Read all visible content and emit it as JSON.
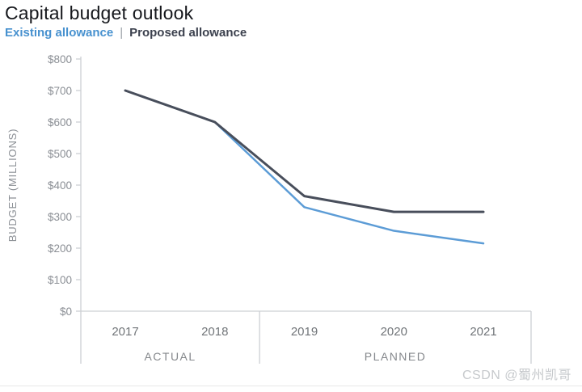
{
  "header": {
    "title": "Capital budget outlook",
    "legend_separator": "|",
    "legend": [
      {
        "label": "Existing allowance",
        "color": "#4791cf"
      },
      {
        "label": "Proposed allowance",
        "color": "#3c414e"
      }
    ]
  },
  "chart_data": {
    "type": "line",
    "title": "Capital budget outlook",
    "xlabel": "",
    "ylabel": "BUDGET (MILLIONS)",
    "x": [
      "2017",
      "2018",
      "2019",
      "2020",
      "2021"
    ],
    "series": [
      {
        "name": "Existing allowance",
        "color": "#5c9cd6",
        "values": [
          700,
          600,
          330,
          255,
          215
        ]
      },
      {
        "name": "Proposed allowance",
        "color": "#484e5b",
        "values": [
          700,
          600,
          365,
          315,
          315
        ]
      }
    ],
    "ylim": [
      0,
      800
    ],
    "ytick_prefix": "$",
    "yticks": [
      {
        "v": 800,
        "label": "$800"
      },
      {
        "v": 700,
        "label": "$700"
      },
      {
        "v": 600,
        "label": "$600"
      },
      {
        "v": 500,
        "label": "$500"
      },
      {
        "v": 400,
        "label": "$400"
      },
      {
        "v": 300,
        "label": "$300"
      },
      {
        "v": 200,
        "label": "$200"
      },
      {
        "v": 100,
        "label": "$100"
      },
      {
        "v": 0,
        "label": "$0"
      }
    ],
    "x_groups": [
      {
        "label": "ACTUAL",
        "from_index": 0,
        "to_index": 1
      },
      {
        "label": "PLANNED",
        "from_index": 2,
        "to_index": 4
      }
    ],
    "grid": false,
    "legend_position": "top-left",
    "axis_color": "#cdd0d4"
  },
  "watermark": {
    "text": "CSDN @蜀州凯哥"
  }
}
